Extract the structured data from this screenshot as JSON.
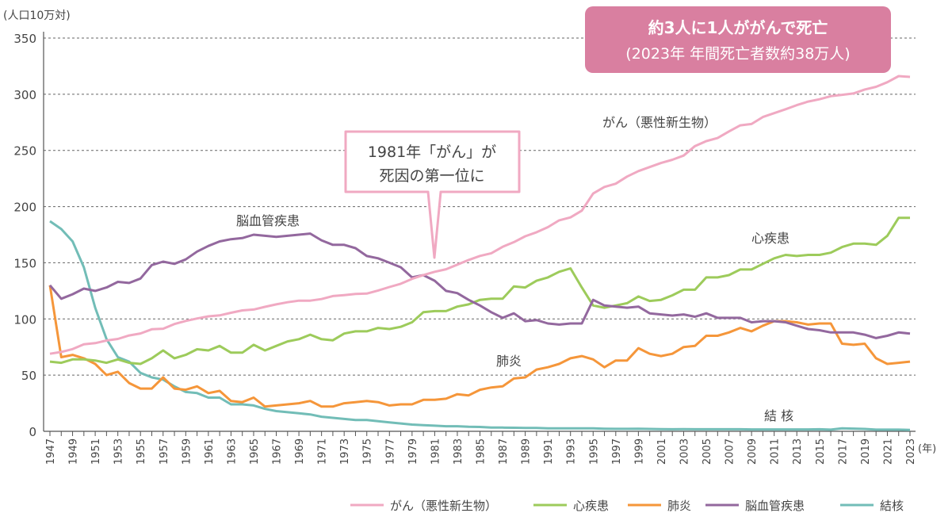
{
  "chart_data": {
    "type": "line",
    "unit_label": "(人口10万対)",
    "x_unit_label": "(年)",
    "ylim": [
      0,
      350
    ],
    "yticks": [
      0,
      50,
      100,
      150,
      200,
      250,
      300,
      350
    ],
    "xlim": [
      1947,
      2023
    ],
    "grid": "horizontal dashed",
    "legend_position": "bottom-right",
    "x": [
      1947,
      1948,
      1949,
      1950,
      1951,
      1952,
      1953,
      1954,
      1955,
      1956,
      1957,
      1958,
      1959,
      1960,
      1961,
      1962,
      1963,
      1964,
      1965,
      1966,
      1967,
      1968,
      1969,
      1970,
      1971,
      1972,
      1973,
      1974,
      1975,
      1976,
      1977,
      1978,
      1979,
      1980,
      1981,
      1982,
      1983,
      1984,
      1985,
      1986,
      1987,
      1988,
      1989,
      1990,
      1991,
      1992,
      1993,
      1994,
      1995,
      1996,
      1997,
      1998,
      1999,
      2000,
      2001,
      2002,
      2003,
      2004,
      2005,
      2006,
      2007,
      2008,
      2009,
      2010,
      2011,
      2012,
      2013,
      2014,
      2015,
      2016,
      2017,
      2018,
      2019,
      2020,
      2021,
      2022,
      2023
    ],
    "series": [
      {
        "name": "がん（悪性新生物）",
        "label": "がん（悪性新生物）",
        "color": "#f0a9c2",
        "values": [
          69,
          70.6,
          73.2,
          77.4,
          78.5,
          80.8,
          82.2,
          85.3,
          87.1,
          90.8,
          91.3,
          95.5,
          98.2,
          100.4,
          102.3,
          103.2,
          105.5,
          107.6,
          108.4,
          110.8,
          113,
          114.9,
          116.3,
          116.3,
          117.7,
          120.4,
          121.2,
          122.2,
          122.6,
          125.3,
          128.4,
          131.3,
          135.7,
          139.1,
          142,
          144.2,
          148.3,
          152.5,
          156.1,
          158.5,
          164.2,
          168.4,
          173.6,
          177.2,
          181.7,
          187.8,
          190.4,
          196.4,
          211.6,
          217.5,
          220.4,
          226.7,
          231.6,
          235.2,
          238.8,
          241.7,
          245.4,
          253.9,
          258.3,
          261,
          266.9,
          272.3,
          273.5,
          279.7,
          283.2,
          286.6,
          290.3,
          293.5,
          295.5,
          298.3,
          299.5,
          300.7,
          304.2,
          306.6,
          310.7,
          316.1,
          315.4
        ]
      },
      {
        "name": "心疾患",
        "label": "心疾患",
        "color": "#9dcb5b",
        "values": [
          62,
          61,
          64,
          64,
          63,
          61,
          64,
          61,
          60,
          65,
          72,
          65,
          68,
          73,
          72,
          76,
          70,
          70,
          77,
          72,
          76,
          80,
          82,
          86,
          82,
          81,
          87,
          89,
          89,
          92,
          91,
          93,
          97,
          106,
          107,
          107,
          111,
          113,
          117,
          118,
          118,
          129,
          128,
          134,
          137,
          142,
          145,
          128,
          112,
          110,
          112,
          114,
          120,
          116,
          117,
          121,
          126,
          126,
          137,
          137,
          139,
          144,
          144,
          149,
          154,
          157,
          156,
          157,
          157,
          159,
          164,
          167,
          167,
          166,
          174,
          190,
          190
        ]
      },
      {
        "name": "肺炎",
        "label": "肺炎",
        "color": "#f5963a",
        "values": [
          130,
          66,
          68,
          65,
          60,
          50,
          53,
          43,
          38,
          38,
          48,
          38,
          37,
          40,
          34,
          36,
          27,
          26,
          30,
          22,
          23,
          24,
          25,
          27,
          22,
          22,
          25,
          26,
          27,
          26,
          23,
          24,
          24,
          28,
          28,
          29,
          33,
          32,
          37,
          39,
          40,
          47,
          48,
          55,
          57,
          60,
          65,
          67,
          64,
          57,
          63,
          63,
          74,
          69,
          67,
          69,
          75,
          76,
          85,
          85,
          88,
          92,
          89,
          94,
          98,
          98,
          97,
          95,
          96,
          96,
          78,
          77,
          78,
          65,
          60,
          61,
          62
        ]
      },
      {
        "name": "脳血管疾患",
        "label": "脳血管疾患",
        "color": "#93689e",
        "values": [
          130,
          118,
          122,
          127,
          125,
          128,
          133,
          132,
          136,
          148,
          151,
          149,
          153,
          160,
          165,
          169,
          171,
          172,
          175,
          174,
          173,
          174,
          175,
          176,
          170,
          166,
          166,
          163,
          156,
          154,
          150,
          146,
          137,
          139,
          134,
          125,
          123,
          117,
          112,
          106,
          101,
          105,
          98,
          99,
          96,
          95,
          96,
          96,
          117,
          112,
          111,
          110,
          111,
          105,
          104,
          103,
          104,
          102,
          105,
          101,
          101,
          101,
          97,
          98,
          98,
          97,
          94,
          91,
          90,
          88,
          88,
          88,
          86,
          83,
          85,
          88,
          87
        ]
      },
      {
        "name": "結核",
        "label": "結 核",
        "color": "#72bdb7",
        "values": [
          187,
          180,
          169,
          146,
          110,
          82,
          66,
          62,
          52,
          48,
          46,
          40,
          35,
          34,
          30,
          30,
          24,
          24,
          23,
          20,
          18,
          17,
          16,
          15,
          13,
          12,
          11,
          10,
          10,
          9,
          8,
          7,
          6,
          5.5,
          5,
          4.5,
          4.5,
          4,
          3.9,
          3.4,
          3.3,
          3.2,
          3,
          3,
          2.7,
          2.7,
          2.6,
          2.6,
          2.6,
          2.3,
          2.2,
          2.2,
          2.3,
          2.1,
          2,
          1.8,
          1.9,
          1.8,
          1.8,
          1.8,
          1.8,
          1.8,
          1.7,
          1.7,
          1.7,
          1.7,
          1.7,
          1.7,
          1.8,
          1.5,
          2.6,
          2.4,
          2.1,
          1.5,
          1.5,
          1.5,
          1.3
        ]
      }
    ],
    "legend": [
      "がん（悪性新生物）",
      "心疾患",
      "肺炎",
      "脳血管疾患",
      "結核"
    ]
  },
  "headline": {
    "line1": "約3人に1人ががんで死亡",
    "line2": "(2023年 年間死亡者数約38万人)",
    "color": "#d97fa0"
  },
  "callout": {
    "line1": "1981年「がん」が",
    "line2": "死因の第一位に",
    "year": 1981,
    "border_color": "#f0a9c2"
  }
}
